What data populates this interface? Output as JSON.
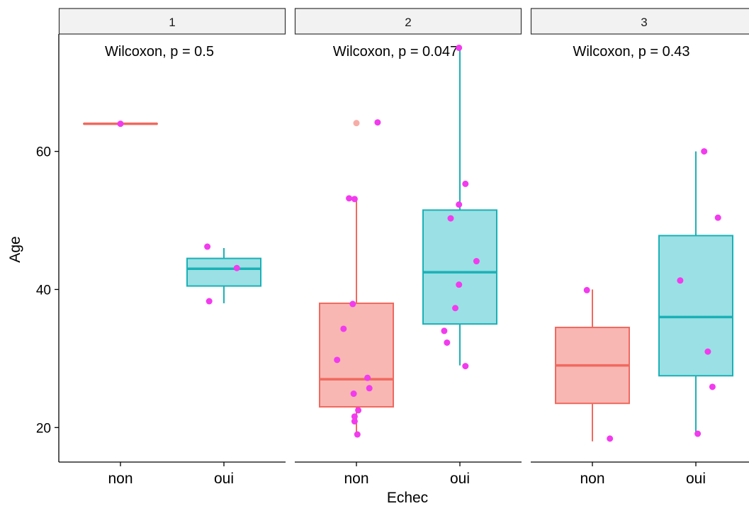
{
  "chart_data": {
    "type": "boxplot",
    "xlabel": "Echec",
    "ylabel": "Age",
    "ylim": [
      15,
      77
    ],
    "yticks": [
      20,
      40,
      60
    ],
    "categories": [
      "non",
      "oui"
    ],
    "colors": {
      "non": {
        "line": "#F0695F",
        "fill": "#F8B7B3"
      },
      "oui": {
        "line": "#1AB1B7",
        "fill": "#9BE0E4"
      },
      "points": "#F23BEE"
    },
    "panels": [
      {
        "strip_label": "1",
        "annotation": "Wilcoxon, p = 0.5",
        "boxes": {
          "non": {
            "min": 64,
            "q1": 64,
            "median": 64,
            "q3": 64,
            "max": 64
          },
          "oui": {
            "min": 38,
            "q1": 40.5,
            "median": 43,
            "q3": 44.5,
            "max": 46
          }
        },
        "points": {
          "non": [
            [
              0,
              64
            ]
          ],
          "oui": [
            [
              -0.18,
              46.2
            ],
            [
              0.14,
              43.1
            ],
            [
              -0.16,
              38.3
            ]
          ]
        },
        "outliers": {
          "non": [],
          "oui": []
        }
      },
      {
        "strip_label": "2",
        "annotation": "Wilcoxon, p = 0.047",
        "boxes": {
          "non": {
            "min": 19,
            "q1": 23,
            "median": 27,
            "q3": 38,
            "max": 53
          },
          "oui": {
            "min": 29,
            "q1": 35,
            "median": 42.5,
            "q3": 51.5,
            "max": 75
          }
        },
        "points": {
          "non": [
            [
              0.23,
              64.2
            ],
            [
              -0.08,
              53.2
            ],
            [
              -0.02,
              53.1
            ],
            [
              -0.04,
              37.9
            ],
            [
              -0.14,
              34.3
            ],
            [
              -0.21,
              29.8
            ],
            [
              0.12,
              27.2
            ],
            [
              0.14,
              25.7
            ],
            [
              -0.03,
              24.9
            ],
            [
              0.02,
              22.5
            ],
            [
              -0.02,
              21.6
            ],
            [
              -0.02,
              20.9
            ],
            [
              0.01,
              19.0
            ]
          ],
          "oui": [
            [
              -0.01,
              75.0
            ],
            [
              0.06,
              55.3
            ],
            [
              -0.01,
              52.3
            ],
            [
              -0.1,
              50.3
            ],
            [
              0.18,
              44.1
            ],
            [
              -0.01,
              40.7
            ],
            [
              -0.05,
              37.3
            ],
            [
              -0.17,
              34.0
            ],
            [
              -0.14,
              32.3
            ],
            [
              0.06,
              28.9
            ]
          ]
        },
        "outliers": {
          "non": [
            64.1
          ],
          "oui": []
        }
      },
      {
        "strip_label": "3",
        "annotation": "Wilcoxon, p = 0.43",
        "boxes": {
          "non": {
            "min": 18,
            "q1": 23.5,
            "median": 29,
            "q3": 34.5,
            "max": 40
          },
          "oui": {
            "min": 19,
            "q1": 27.5,
            "median": 36,
            "q3": 47.8,
            "max": 60
          }
        },
        "points": {
          "non": [
            [
              -0.06,
              39.9
            ],
            [
              0.19,
              18.4
            ]
          ],
          "oui": [
            [
              0.09,
              60.0
            ],
            [
              0.24,
              50.4
            ],
            [
              -0.17,
              41.3
            ],
            [
              0.13,
              31.0
            ],
            [
              0.18,
              25.9
            ],
            [
              0.02,
              19.1
            ]
          ]
        },
        "outliers": {
          "non": [],
          "oui": []
        }
      }
    ]
  }
}
